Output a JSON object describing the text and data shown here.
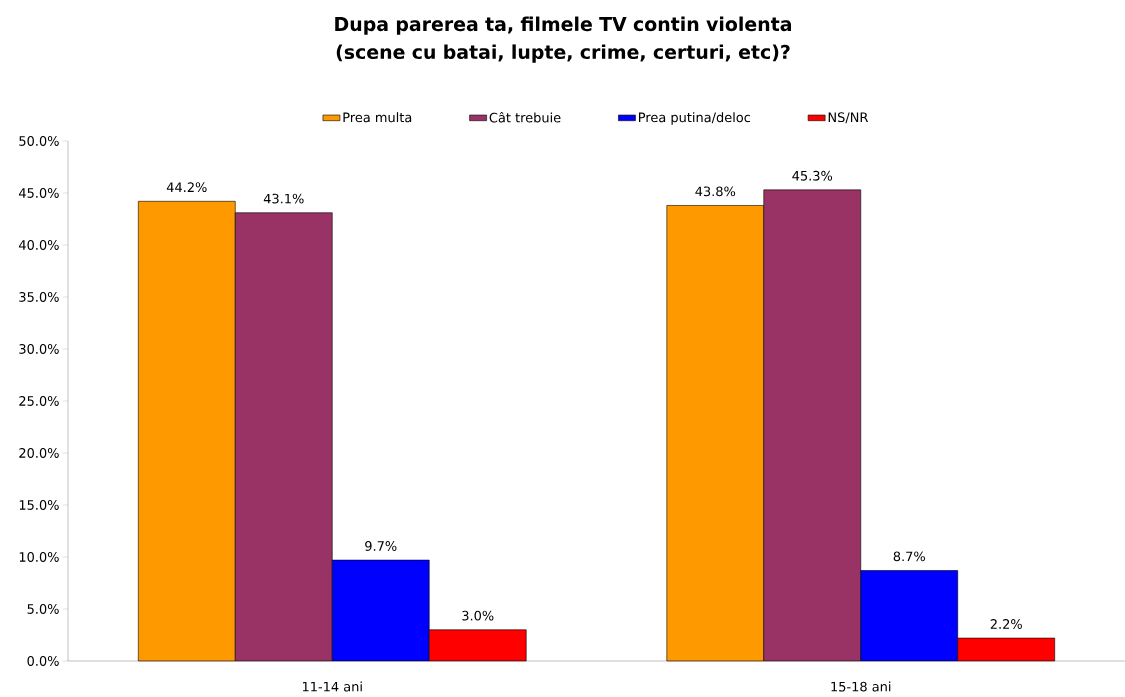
{
  "chart_data": {
    "type": "bar",
    "title": "Dupa parerea ta, filmele TV contin violenta (scene cu batai, lupte, crime, certuri, etc)?",
    "categories": [
      "11-14 ani",
      "15-18 ani"
    ],
    "series": [
      {
        "name": "Prea multa",
        "color": "#ff9900",
        "values": [
          44.2,
          43.8
        ],
        "value_labels": [
          "44.2%",
          "43.8%"
        ]
      },
      {
        "name": "Cât trebuie",
        "color": "#993366",
        "values": [
          43.1,
          45.3
        ],
        "value_labels": [
          "43.1%",
          "45.3%"
        ]
      },
      {
        "name": "Prea putina/deloc",
        "color": "#0000ff",
        "values": [
          9.7,
          8.7
        ],
        "value_labels": [
          "9.7%",
          "8.7%"
        ]
      },
      {
        "name": "NS/NR",
        "color": "#ff0000",
        "values": [
          3.0,
          2.2
        ],
        "value_labels": [
          "3.0%",
          "2.2%"
        ]
      }
    ],
    "ylim": [
      0,
      50
    ],
    "yticks": [
      {
        "value": 0,
        "label": "0.0%"
      },
      {
        "value": 5,
        "label": "5.0%"
      },
      {
        "value": 10,
        "label": "10.0%"
      },
      {
        "value": 15,
        "label": "15.0%"
      },
      {
        "value": 20,
        "label": "20.0%"
      },
      {
        "value": 25,
        "label": "25.0%"
      },
      {
        "value": 30,
        "label": "30.0%"
      },
      {
        "value": 35,
        "label": "35.0%"
      },
      {
        "value": 40,
        "label": "40.0%"
      },
      {
        "value": 45,
        "label": "45.0%"
      },
      {
        "value": 50,
        "label": "50.0%"
      }
    ],
    "grid": false,
    "legend": "top"
  }
}
